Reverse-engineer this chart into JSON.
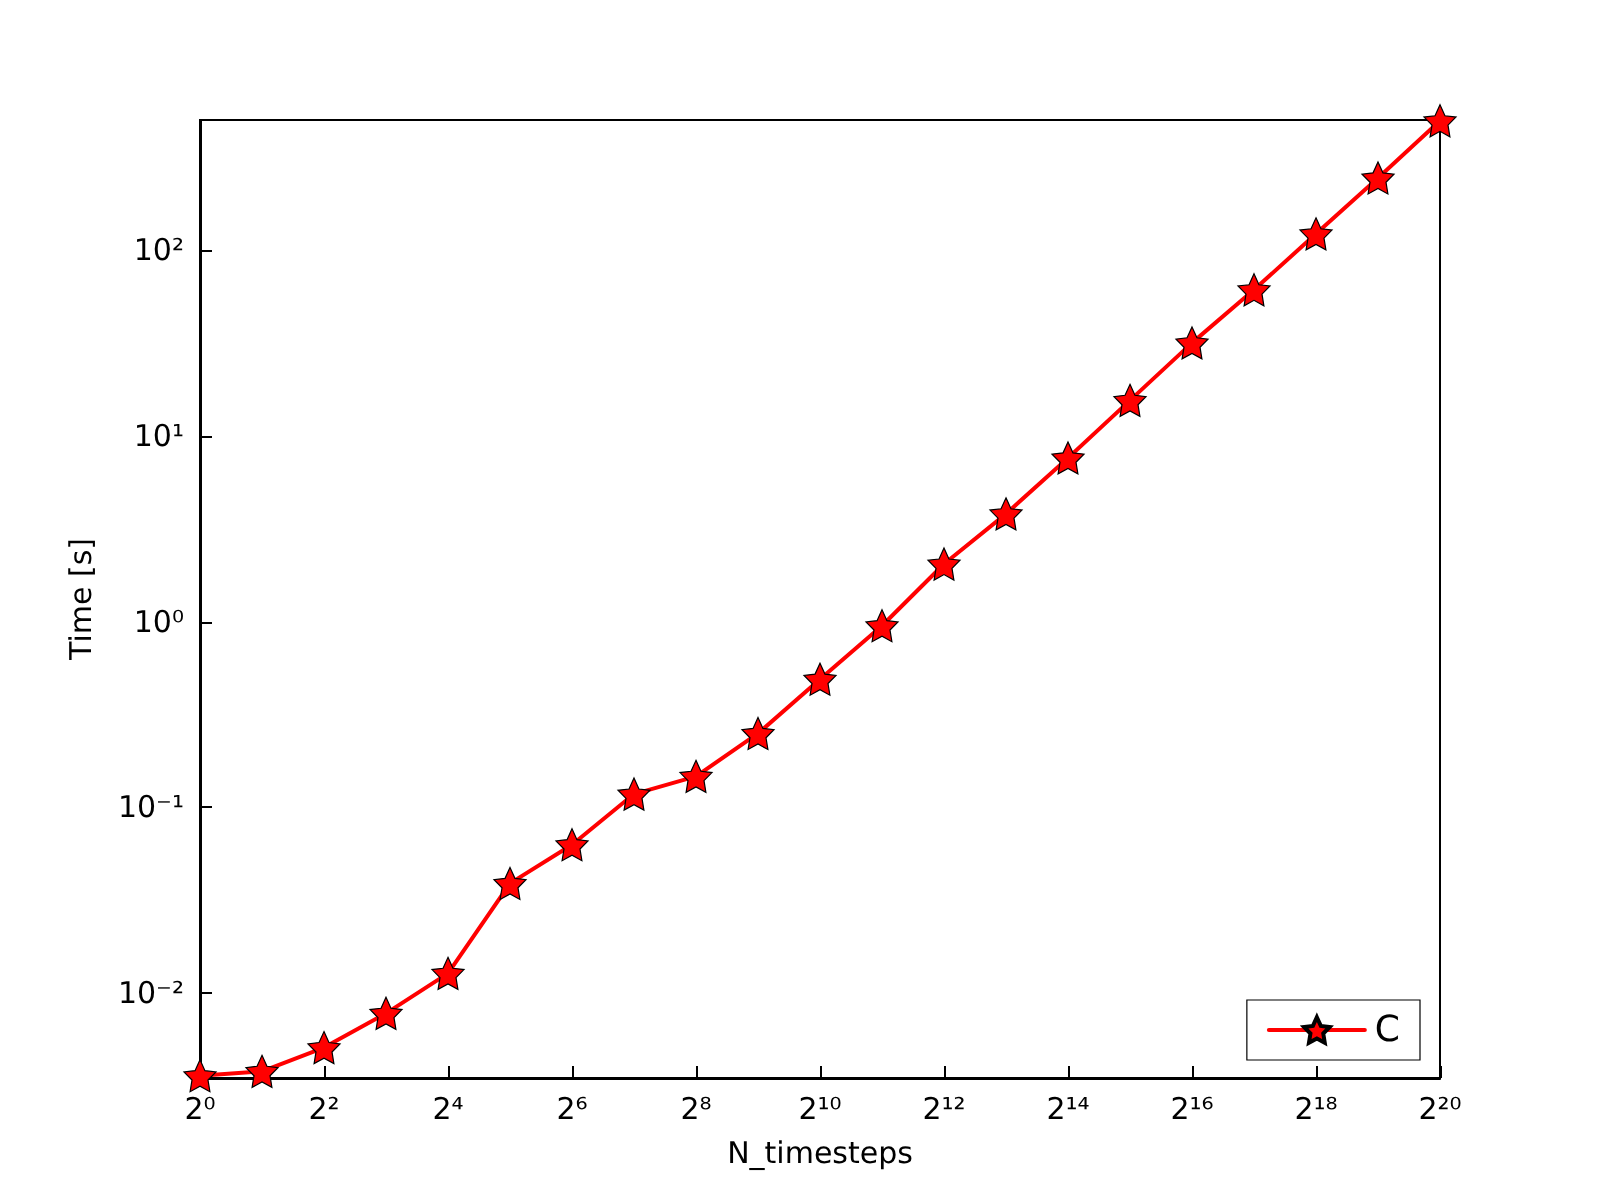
{
  "chart_data": {
    "type": "line",
    "xlabel": "N_timesteps",
    "ylabel": "Time [s]",
    "log": "xy",
    "grid": false,
    "legend": "bottom right",
    "marker": "star",
    "line_style": "solid",
    "x": [
      1,
      2,
      4,
      8,
      16,
      32,
      64,
      128,
      256,
      512,
      1024,
      2048,
      4096,
      8192,
      16384,
      32768,
      65536,
      131072,
      262144,
      524288,
      1048576
    ],
    "series": [
      {
        "name": "C",
        "color": "#ff0000",
        "values": [
          0.0036,
          0.0038,
          0.0051,
          0.0078,
          0.0128,
          0.039,
          0.063,
          0.118,
          0.147,
          0.25,
          0.49,
          0.95,
          2.04,
          3.8,
          7.6,
          15.5,
          31.6,
          61,
          122,
          244,
          495
        ]
      }
    ],
    "xlim": [
      1,
      1048576
    ],
    "xticks": [
      {
        "value": 1,
        "label": "2⁰"
      },
      {
        "value": 4,
        "label": "2²"
      },
      {
        "value": 16,
        "label": "2⁴"
      },
      {
        "value": 64,
        "label": "2⁶"
      },
      {
        "value": 256,
        "label": "2⁸"
      },
      {
        "value": 1024,
        "label": "2¹⁰"
      },
      {
        "value": 4096,
        "label": "2¹²"
      },
      {
        "value": 16384,
        "label": "2¹⁴"
      },
      {
        "value": 65536,
        "label": "2¹⁶"
      },
      {
        "value": 262144,
        "label": "2¹⁸"
      },
      {
        "value": 1048576,
        "label": "2²⁰"
      }
    ],
    "ylim": [
      0.0035,
      500
    ],
    "yticks": [
      {
        "value": 0.01,
        "label": "10⁻²"
      },
      {
        "value": 0.1,
        "label": "10⁻¹"
      },
      {
        "value": 1,
        "label": "10⁰"
      },
      {
        "value": 10,
        "label": "10¹"
      },
      {
        "value": 100,
        "label": "10²"
      }
    ]
  }
}
